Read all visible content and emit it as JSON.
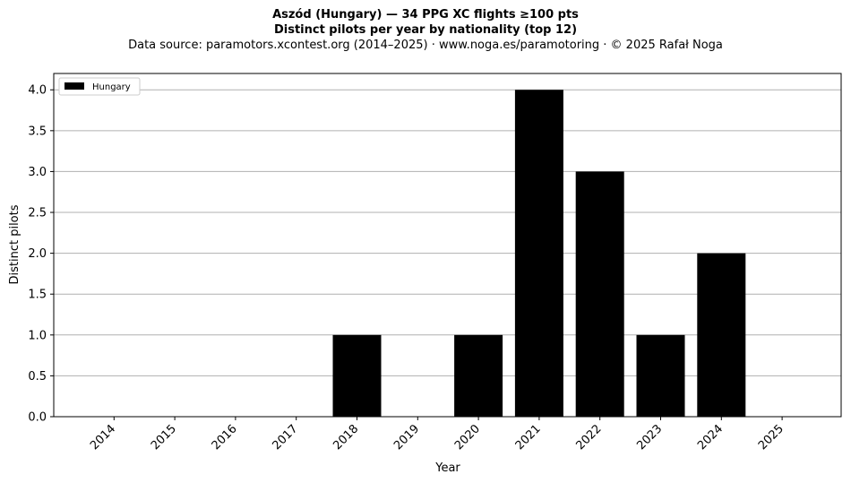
{
  "header": {
    "title_line1": "Aszód (Hungary)  —  34 PPG XC flights ≥100 pts",
    "title_line2": "Distinct pilots per year by nationality (top 12)",
    "subtitle": "Data source: paramotors.xcontest.org (2014–2025)  ·  www.noga.es/paramotoring  ·  © 2025 Rafał Noga"
  },
  "chart_data": {
    "type": "bar",
    "categories": [
      "2014",
      "2015",
      "2016",
      "2017",
      "2018",
      "2019",
      "2020",
      "2021",
      "2022",
      "2023",
      "2024",
      "2025"
    ],
    "series": [
      {
        "name": "Hungary",
        "color": "#000000",
        "values": [
          0,
          0,
          0,
          0,
          1,
          0,
          1,
          4,
          3,
          1,
          2,
          0
        ]
      }
    ],
    "xlabel": "Year",
    "ylabel": "Distinct pilots",
    "ylim": [
      0,
      4.2
    ],
    "yticks": [
      "0.0",
      "0.5",
      "1.0",
      "1.5",
      "2.0",
      "2.5",
      "3.0",
      "3.5",
      "4.0"
    ],
    "grid": "horizontal",
    "legend_position": "upper-left"
  }
}
